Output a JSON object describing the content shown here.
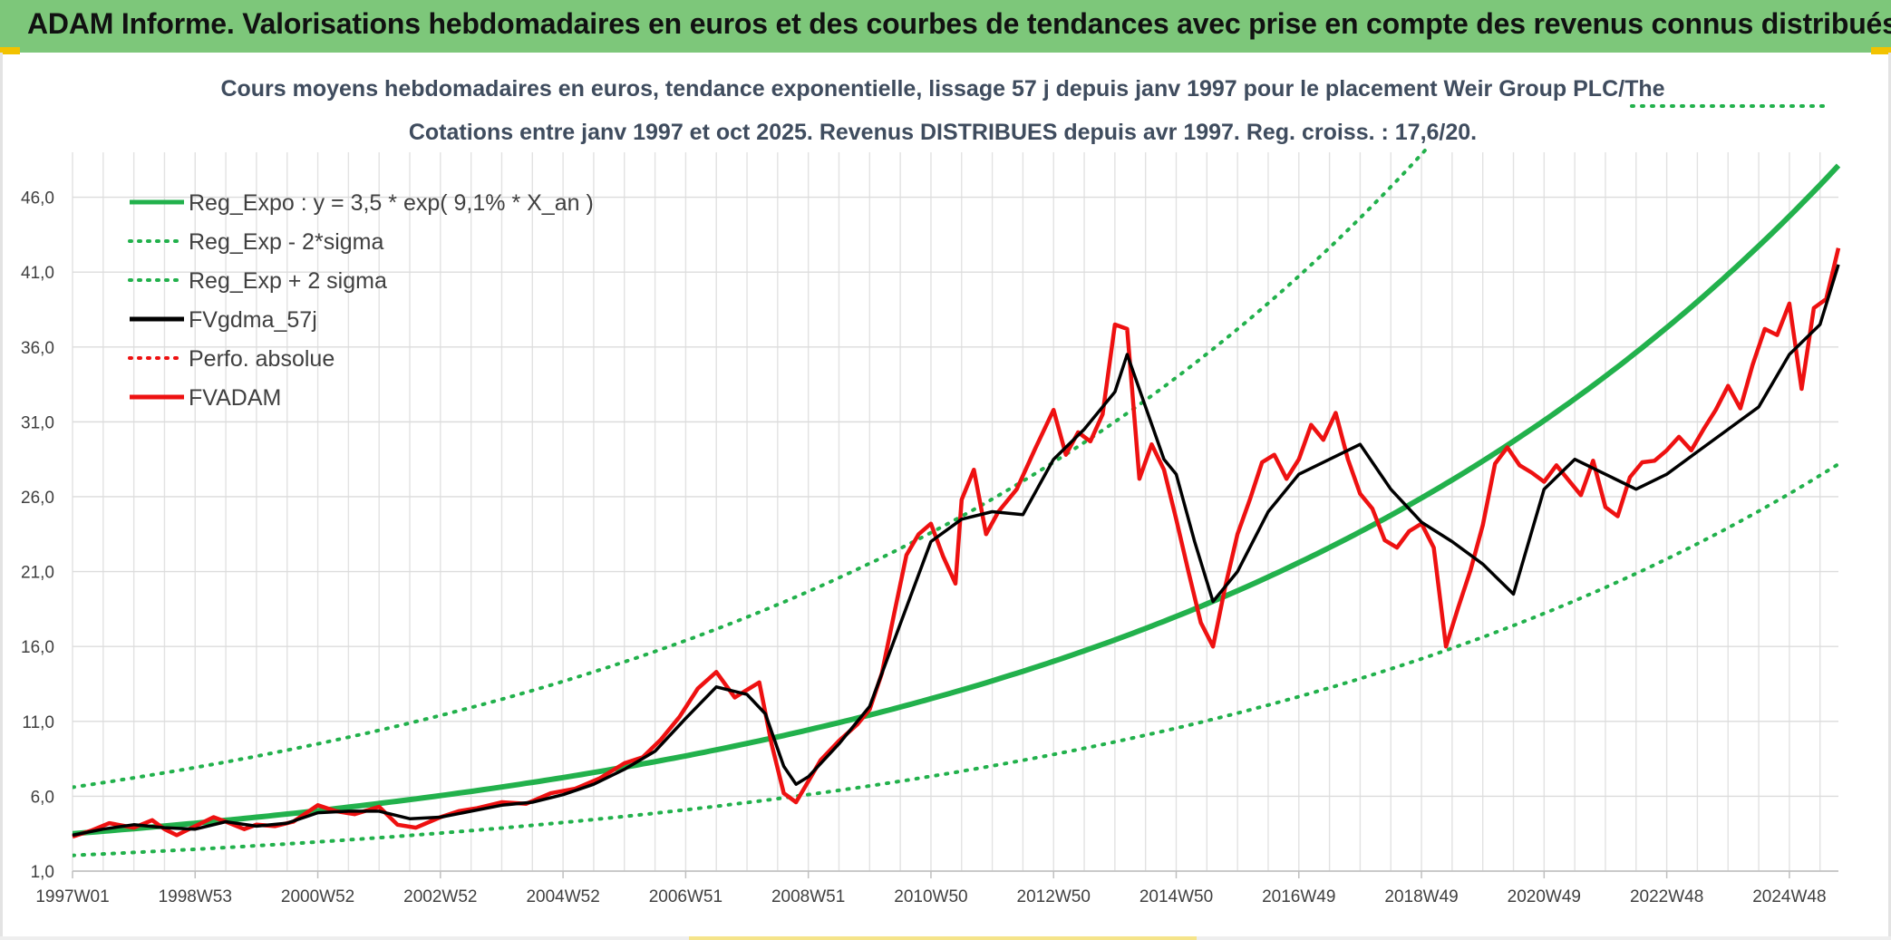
{
  "banner": {
    "title": "ADAM Informe. Valorisations hebdomadaires en euros et des courbes de tendances avec prise en compte des revenus connus distribués"
  },
  "chart_data": {
    "type": "line",
    "title_line1": "Cours moyens hebdomadaires en euros, tendance exponentielle, lissage 57 j depuis janv 1997 pour le placement Weir Group PLC/The",
    "title_line2": "Cotations entre janv 1997 et oct 2025. Revenus DISTRIBUES depuis avr 1997. Reg. croiss. : 17,6/20.",
    "ylim": [
      1.0,
      49.0
    ],
    "xlim": [
      1997.0,
      2025.8
    ],
    "y_ticks": [
      "1,0",
      "6,0",
      "11,0",
      "16,0",
      "21,0",
      "26,0",
      "31,0",
      "36,0",
      "41,0",
      "46,0"
    ],
    "y_tick_values": [
      1,
      6,
      11,
      16,
      21,
      26,
      31,
      36,
      41,
      46
    ],
    "x_ticks": [
      "1997W01",
      "1998W53",
      "2000W52",
      "2002W52",
      "2004W52",
      "2006W51",
      "2008W51",
      "2010W50",
      "2012W50",
      "2014W50",
      "2016W49",
      "2018W49",
      "2020W49",
      "2022W48",
      "2024W48"
    ],
    "x_tick_values": [
      1997.0,
      1999.0,
      2001.0,
      2003.0,
      2005.0,
      2007.0,
      2009.0,
      2011.0,
      2013.0,
      2015.0,
      2017.0,
      2019.0,
      2021.0,
      2023.0,
      2025.0
    ],
    "grid": true,
    "legend_position": "top-left",
    "legend": [
      {
        "label": "Reg_Expo : y = 3,5 * exp( 9,1% *  X_an )",
        "color": "#22b14c",
        "style": "solid"
      },
      {
        "label": "Reg_Exp - 2*sigma",
        "color": "#22b14c",
        "style": "dotted"
      },
      {
        "label": "Reg_Exp + 2 sigma",
        "color": "#22b14c",
        "style": "dotted"
      },
      {
        "label": "FVgdma_57j",
        "color": "#000000",
        "style": "solid"
      },
      {
        "label": "Perfo. absolue",
        "color": "#ee1111",
        "style": "dotted"
      },
      {
        "label": "FVADAM",
        "color": "#ee1111",
        "style": "solid"
      }
    ],
    "trend": {
      "a": 3.5,
      "rate": 0.091,
      "lower_a": 2.05,
      "upper_a": 6.6
    },
    "series": [
      {
        "name": "FVADAM",
        "color": "#ee1111",
        "x": [
          1997.0,
          1997.3,
          1997.6,
          1998.0,
          1998.3,
          1998.5,
          1998.7,
          1999.0,
          1999.3,
          1999.5,
          1999.8,
          2000.0,
          2000.3,
          2000.6,
          2001.0,
          2001.3,
          2001.6,
          2002.0,
          2002.3,
          2002.6,
          2003.0,
          2003.3,
          2003.6,
          2004.0,
          2004.4,
          2004.8,
          2005.2,
          2005.6,
          2006.0,
          2006.3,
          2006.6,
          2006.9,
          2007.2,
          2007.5,
          2007.8,
          2008.0,
          2008.2,
          2008.4,
          2008.6,
          2008.8,
          2009.0,
          2009.2,
          2009.5,
          2009.8,
          2010.0,
          2010.2,
          2010.4,
          2010.6,
          2010.8,
          2011.0,
          2011.2,
          2011.4,
          2011.5,
          2011.7,
          2011.9,
          2012.1,
          2012.4,
          2012.7,
          2013.0,
          2013.2,
          2013.4,
          2013.6,
          2013.8,
          2014.0,
          2014.2,
          2014.4,
          2014.6,
          2014.8,
          2015.0,
          2015.2,
          2015.4,
          2015.6,
          2015.8,
          2016.0,
          2016.2,
          2016.4,
          2016.6,
          2016.8,
          2017.0,
          2017.2,
          2017.4,
          2017.6,
          2017.8,
          2018.0,
          2018.2,
          2018.4,
          2018.6,
          2018.8,
          2019.0,
          2019.2,
          2019.4,
          2019.6,
          2019.8,
          2020.0,
          2020.2,
          2020.4,
          2020.6,
          2020.8,
          2021.0,
          2021.2,
          2021.4,
          2021.6,
          2021.8,
          2022.0,
          2022.2,
          2022.4,
          2022.6,
          2022.8,
          2023.0,
          2023.2,
          2023.4,
          2023.6,
          2023.8,
          2024.0,
          2024.2,
          2024.4,
          2024.6,
          2024.8,
          2025.0,
          2025.2,
          2025.4,
          2025.6,
          2025.8
        ],
        "values": [
          3.3,
          3.7,
          4.2,
          3.9,
          4.4,
          3.8,
          3.4,
          4.0,
          4.6,
          4.3,
          3.8,
          4.1,
          4.0,
          4.3,
          5.4,
          5.0,
          4.8,
          5.3,
          4.1,
          3.9,
          4.6,
          5.0,
          5.2,
          5.6,
          5.5,
          6.2,
          6.5,
          7.2,
          8.2,
          8.6,
          9.8,
          11.3,
          13.2,
          14.3,
          12.6,
          13.1,
          13.6,
          9.5,
          6.2,
          5.6,
          7.0,
          8.4,
          9.7,
          10.8,
          11.8,
          14.2,
          18.2,
          22.1,
          23.5,
          24.2,
          22.0,
          20.2,
          25.8,
          27.8,
          23.5,
          25.0,
          26.5,
          29.2,
          31.8,
          28.8,
          30.3,
          29.7,
          31.5,
          37.5,
          37.2,
          27.2,
          29.5,
          27.8,
          24.5,
          21.0,
          17.6,
          16.0,
          20.0,
          23.5,
          25.8,
          28.3,
          28.8,
          27.2,
          28.5,
          30.8,
          29.8,
          31.6,
          28.5,
          26.2,
          25.2,
          23.1,
          22.6,
          23.7,
          24.2,
          22.6,
          16.0,
          18.6,
          21.1,
          24.1,
          28.2,
          29.3,
          28.1,
          27.6,
          27.0,
          28.1,
          27.1,
          26.1,
          28.4,
          25.3,
          24.7,
          27.3,
          28.3,
          28.4,
          29.1,
          30.0,
          29.1,
          30.5,
          31.8,
          33.4,
          31.9,
          34.8,
          37.2,
          36.8,
          38.9,
          33.2,
          38.6,
          39.2,
          42.6
        ]
      },
      {
        "name": "FVgdma_57j",
        "color": "#000000",
        "x": [
          1997.0,
          1997.5,
          1998.0,
          1998.5,
          1999.0,
          1999.5,
          2000.0,
          2000.5,
          2001.0,
          2001.5,
          2002.0,
          2002.5,
          2003.0,
          2003.5,
          2004.0,
          2004.5,
          2005.0,
          2005.5,
          2006.0,
          2006.5,
          2007.0,
          2007.5,
          2008.0,
          2008.3,
          2008.6,
          2008.8,
          2009.0,
          2009.5,
          2010.0,
          2010.5,
          2011.0,
          2011.5,
          2012.0,
          2012.5,
          2013.0,
          2013.5,
          2014.0,
          2014.2,
          2014.5,
          2014.8,
          2015.0,
          2015.3,
          2015.6,
          2016.0,
          2016.5,
          2017.0,
          2017.5,
          2018.0,
          2018.5,
          2019.0,
          2019.5,
          2020.0,
          2020.5,
          2021.0,
          2021.5,
          2022.0,
          2022.5,
          2023.0,
          2023.5,
          2024.0,
          2024.5,
          2025.0,
          2025.5,
          2025.8
        ],
        "values": [
          3.4,
          3.8,
          4.1,
          3.9,
          3.8,
          4.3,
          4.0,
          4.2,
          4.9,
          5.0,
          5.0,
          4.5,
          4.6,
          5.0,
          5.4,
          5.6,
          6.1,
          6.8,
          7.8,
          9.0,
          11.2,
          13.3,
          12.8,
          11.5,
          8.0,
          6.8,
          7.3,
          9.5,
          12.0,
          17.5,
          23.0,
          24.5,
          25.0,
          24.8,
          28.5,
          30.5,
          33.0,
          35.5,
          32.0,
          28.5,
          27.5,
          23.0,
          19.0,
          21.0,
          25.0,
          27.5,
          28.5,
          29.5,
          26.5,
          24.3,
          23.0,
          21.5,
          19.5,
          26.5,
          28.5,
          27.5,
          26.5,
          27.5,
          29.0,
          30.5,
          32.0,
          35.5,
          37.5,
          41.5
        ]
      }
    ]
  }
}
